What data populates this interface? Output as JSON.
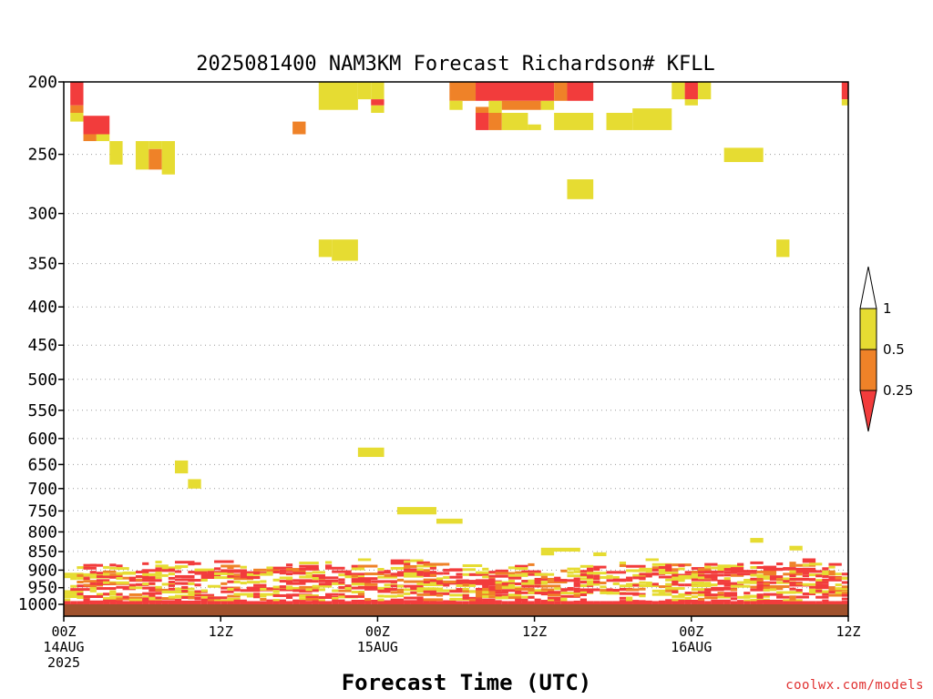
{
  "chart_data": {
    "type": "heatmap",
    "title": "2025081400 NAM3KM Forecast Richardson# KFLL",
    "xlabel": "Forecast Time (UTC)",
    "ylabel": "",
    "x_unit": "forecast hour from 2025-08-14 00Z",
    "xlim": [
      0,
      60
    ],
    "ylim_hPa": [
      1000,
      200
    ],
    "y_scale": "log",
    "x_ticks": [
      {
        "hour": 0,
        "lines": [
          "00Z",
          "14AUG",
          "2025"
        ]
      },
      {
        "hour": 12,
        "lines": [
          "12Z"
        ]
      },
      {
        "hour": 24,
        "lines": [
          "00Z",
          "15AUG"
        ]
      },
      {
        "hour": 36,
        "lines": [
          "12Z"
        ]
      },
      {
        "hour": 48,
        "lines": [
          "00Z",
          "16AUG"
        ]
      },
      {
        "hour": 60,
        "lines": [
          "12Z"
        ]
      }
    ],
    "y_ticks": [
      200,
      250,
      300,
      350,
      400,
      450,
      500,
      550,
      600,
      650,
      700,
      750,
      800,
      850,
      900,
      950,
      1000
    ],
    "grid": "dotted horizontal lines at pressure levels",
    "legend": {
      "placement": "right",
      "bins": [
        {
          "label": "< 0.25",
          "color": "#f23c3c"
        },
        {
          "label": "0.25 - 0.5",
          "color": "#ef8228"
        },
        {
          "label": "0.5 - 1",
          "color": "#e6dc32"
        },
        {
          "label": "> 1",
          "color": "#ffffff"
        }
      ],
      "tick_labels": [
        "1",
        "0.5",
        "0.25"
      ]
    },
    "colors": {
      "red": "#f23c3c",
      "orange": "#ef8228",
      "yellow": "#e6dc32",
      "ground": "#a0522d"
    },
    "cells": [
      {
        "t0": 0.5,
        "t1": 1.5,
        "p0": 200,
        "p1": 215,
        "c": "red"
      },
      {
        "t0": 0.5,
        "t1": 1.5,
        "p0": 215,
        "p1": 220,
        "c": "orange"
      },
      {
        "t0": 0.5,
        "t1": 1.5,
        "p0": 220,
        "p1": 226,
        "c": "yellow"
      },
      {
        "t0": 1.5,
        "t1": 3.5,
        "p0": 222,
        "p1": 235,
        "c": "red"
      },
      {
        "t0": 1.5,
        "t1": 2.5,
        "p0": 235,
        "p1": 240,
        "c": "orange"
      },
      {
        "t0": 2.5,
        "t1": 3.5,
        "p0": 235,
        "p1": 240,
        "c": "yellow"
      },
      {
        "t0": 3.5,
        "t1": 4.5,
        "p0": 240,
        "p1": 258,
        "c": "yellow"
      },
      {
        "t0": 5.5,
        "t1": 6.5,
        "p0": 240,
        "p1": 262,
        "c": "yellow"
      },
      {
        "t0": 6.5,
        "t1": 7.5,
        "p0": 240,
        "p1": 246,
        "c": "yellow"
      },
      {
        "t0": 6.5,
        "t1": 7.5,
        "p0": 246,
        "p1": 262,
        "c": "orange"
      },
      {
        "t0": 7.5,
        "t1": 8.5,
        "p0": 240,
        "p1": 266,
        "c": "yellow"
      },
      {
        "t0": 17.5,
        "t1": 18.5,
        "p0": 226,
        "p1": 235,
        "c": "orange"
      },
      {
        "t0": 19.5,
        "t1": 22.5,
        "p0": 200,
        "p1": 218,
        "c": "yellow"
      },
      {
        "t0": 22.5,
        "t1": 23.5,
        "p0": 200,
        "p1": 211,
        "c": "yellow"
      },
      {
        "t0": 23.5,
        "t1": 24.5,
        "p0": 200,
        "p1": 211,
        "c": "yellow"
      },
      {
        "t0": 23.5,
        "t1": 24.5,
        "p0": 211,
        "p1": 215,
        "c": "red"
      },
      {
        "t0": 23.5,
        "t1": 24.5,
        "p0": 215,
        "p1": 220,
        "c": "yellow"
      },
      {
        "t0": 29.5,
        "t1": 31.5,
        "p0": 200,
        "p1": 212,
        "c": "orange"
      },
      {
        "t0": 31.5,
        "t1": 37.5,
        "p0": 200,
        "p1": 212,
        "c": "red"
      },
      {
        "t0": 29.5,
        "t1": 30.5,
        "p0": 212,
        "p1": 218,
        "c": "yellow"
      },
      {
        "t0": 31.5,
        "t1": 32.5,
        "p0": 216,
        "p1": 220,
        "c": "orange"
      },
      {
        "t0": 32.5,
        "t1": 33.5,
        "p0": 212,
        "p1": 220,
        "c": "yellow"
      },
      {
        "t0": 33.5,
        "t1": 36.5,
        "p0": 212,
        "p1": 218,
        "c": "orange"
      },
      {
        "t0": 36.5,
        "t1": 37.5,
        "p0": 212,
        "p1": 218,
        "c": "yellow"
      },
      {
        "t0": 37.5,
        "t1": 38.5,
        "p0": 200,
        "p1": 212,
        "c": "orange"
      },
      {
        "t0": 38.5,
        "t1": 40.5,
        "p0": 200,
        "p1": 212,
        "c": "red"
      },
      {
        "t0": 31.5,
        "t1": 32.5,
        "p0": 220,
        "p1": 232,
        "c": "red"
      },
      {
        "t0": 32.5,
        "t1": 33.5,
        "p0": 220,
        "p1": 232,
        "c": "orange"
      },
      {
        "t0": 33.5,
        "t1": 35.5,
        "p0": 220,
        "p1": 232,
        "c": "yellow"
      },
      {
        "t0": 35.5,
        "t1": 36.5,
        "p0": 228,
        "p1": 232,
        "c": "yellow"
      },
      {
        "t0": 37.5,
        "t1": 40.5,
        "p0": 220,
        "p1": 232,
        "c": "yellow"
      },
      {
        "t0": 41.5,
        "t1": 43.5,
        "p0": 220,
        "p1": 232,
        "c": "yellow"
      },
      {
        "t0": 43.5,
        "t1": 46.5,
        "p0": 217,
        "p1": 232,
        "c": "yellow"
      },
      {
        "t0": 46.5,
        "t1": 47.5,
        "p0": 200,
        "p1": 211,
        "c": "yellow"
      },
      {
        "t0": 47.5,
        "t1": 48.5,
        "p0": 200,
        "p1": 211,
        "c": "red"
      },
      {
        "t0": 47.5,
        "t1": 48.5,
        "p0": 211,
        "p1": 215,
        "c": "yellow"
      },
      {
        "t0": 48.5,
        "t1": 49.5,
        "p0": 200,
        "p1": 211,
        "c": "yellow"
      },
      {
        "t0": 59.5,
        "t1": 60,
        "p0": 200,
        "p1": 211,
        "c": "red"
      },
      {
        "t0": 59.5,
        "t1": 60,
        "p0": 211,
        "p1": 215,
        "c": "yellow"
      },
      {
        "t0": 50.5,
        "t1": 53.5,
        "p0": 245,
        "p1": 256,
        "c": "yellow"
      },
      {
        "t0": 38.5,
        "t1": 40.5,
        "p0": 270,
        "p1": 287,
        "c": "yellow"
      },
      {
        "t0": 19.5,
        "t1": 20.5,
        "p0": 325,
        "p1": 343,
        "c": "yellow"
      },
      {
        "t0": 20.5,
        "t1": 22.5,
        "p0": 325,
        "p1": 347,
        "c": "yellow"
      },
      {
        "t0": 54.5,
        "t1": 55.5,
        "p0": 325,
        "p1": 343,
        "c": "yellow"
      },
      {
        "t0": 22.5,
        "t1": 24.5,
        "p0": 617,
        "p1": 635,
        "c": "yellow"
      },
      {
        "t0": 8.5,
        "t1": 9.5,
        "p0": 642,
        "p1": 668,
        "c": "yellow"
      },
      {
        "t0": 9.5,
        "t1": 10.5,
        "p0": 680,
        "p1": 700,
        "c": "yellow"
      },
      {
        "t0": 25.5,
        "t1": 28.5,
        "p0": 741,
        "p1": 758,
        "c": "yellow"
      },
      {
        "t0": 28.5,
        "t1": 30.5,
        "p0": 768,
        "p1": 780,
        "c": "yellow"
      },
      {
        "t0": 52.5,
        "t1": 53.5,
        "p0": 815,
        "p1": 827,
        "c": "yellow"
      },
      {
        "t0": 55.5,
        "t1": 56.5,
        "p0": 835,
        "p1": 847,
        "c": "yellow"
      },
      {
        "t0": 36.5,
        "t1": 39.5,
        "p0": 840,
        "p1": 850,
        "c": "yellow"
      },
      {
        "t0": 36.5,
        "t1": 37.5,
        "p0": 850,
        "p1": 860,
        "c": "yellow"
      },
      {
        "t0": 40.5,
        "t1": 41.5,
        "p0": 852,
        "p1": 862,
        "c": "yellow"
      },
      {
        "t0": 56.5,
        "t1": 57.5,
        "p0": 868,
        "p1": 880,
        "c": "red"
      },
      {
        "t0": 44.5,
        "t1": 45.5,
        "p0": 868,
        "p1": 875,
        "c": "yellow"
      },
      {
        "t0": 22.5,
        "t1": 23.5,
        "p0": 868,
        "p1": 875,
        "c": "yellow"
      }
    ]
  },
  "site_credit": "coolwx.com/models"
}
